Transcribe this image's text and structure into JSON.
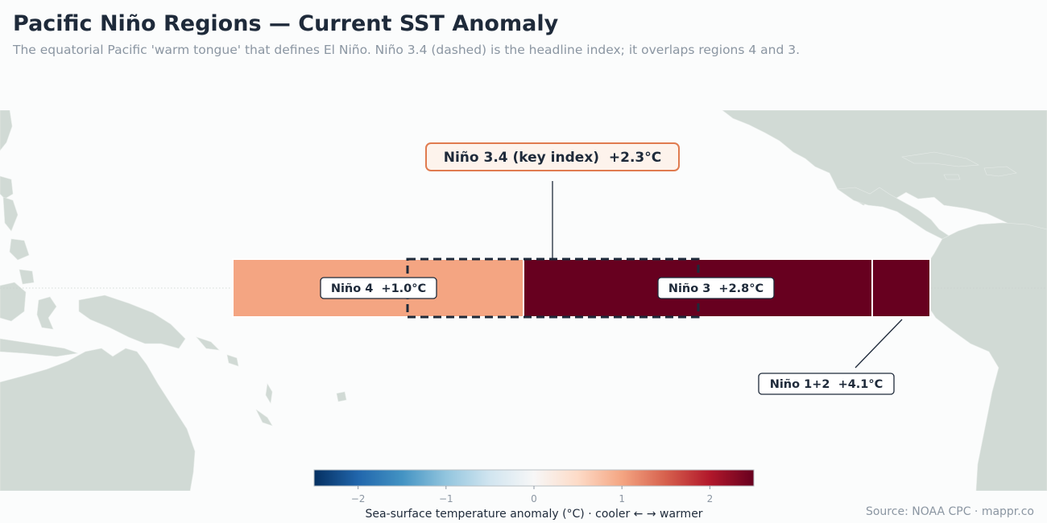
{
  "header": {
    "title": "Pacific Niño Regions — Current SST Anomaly",
    "subtitle": "The equatorial Pacific 'warm tongue' that defines El Niño. Niño 3.4 (dashed) is the headline index; it overlaps regions 4 and 3."
  },
  "regions": {
    "nino4": {
      "label": "Niño 4  +1.0°C",
      "anomaly": 1.0,
      "color": "#f4a582"
    },
    "nino3": {
      "label": "Niño 3  +2.8°C",
      "anomaly": 2.8,
      "color": "#67001f"
    },
    "nino12": {
      "label": "Niño 1+2  +4.1°C",
      "anomaly": 4.1,
      "color": "#67001f"
    },
    "nino34": {
      "label": "Niño 3.4 (key index)  +2.3°C",
      "anomaly": 2.3,
      "border_color": "#e07b4f"
    }
  },
  "colorbar": {
    "ticks": [
      "−2",
      "−1",
      "0",
      "1",
      "2"
    ],
    "label": "Sea-surface temperature anomaly (°C)  ·  cooler ← → warmer",
    "stops": [
      "#053061",
      "#2166ac",
      "#4393c3",
      "#92c5de",
      "#d1e5f0",
      "#f7f7f7",
      "#fddbc7",
      "#f4a582",
      "#d6604d",
      "#b2182b",
      "#67001f"
    ]
  },
  "footer": {
    "source": "Source: NOAA CPC  ·  mappr.co"
  },
  "colors": {
    "land": "#d1dad5",
    "ocean": "#fbfcfc",
    "ink": "#1e2a3a"
  }
}
